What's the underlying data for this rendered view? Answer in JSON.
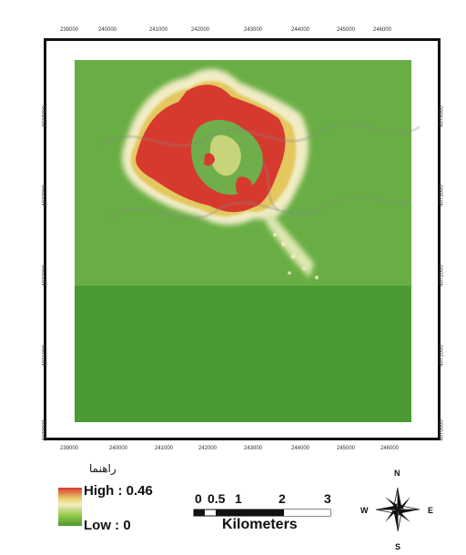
{
  "map": {
    "top_x_ticks": [
      "239000",
      "240000",
      "241000",
      "242000",
      "243000",
      "244000",
      "245000",
      "246000"
    ],
    "bottom_x_ticks": [
      "239000",
      "240000",
      "241000",
      "242000",
      "243000",
      "244000",
      "245000",
      "246000"
    ],
    "left_y_ticks": [
      "4074000",
      "4073000",
      "4072000",
      "4071000",
      "4070000"
    ],
    "right_y_ticks": [
      "4074000",
      "4073000",
      "4072000",
      "4071000",
      "4070000"
    ],
    "colors": {
      "low": "#4b9a32",
      "low_mid": "#9ccc4f",
      "mid": "#f0ecc4",
      "high": "#d63a2e"
    }
  },
  "legend": {
    "title": "راهنما",
    "high_label": "High : 0.46",
    "low_label": "Low : 0"
  },
  "scale_bar": {
    "labels": [
      "0",
      "0.5",
      "1",
      "2",
      "3"
    ],
    "units": "Kilometers"
  },
  "north_arrow": {
    "n": "N",
    "s": "S",
    "e": "E",
    "w": "W"
  }
}
